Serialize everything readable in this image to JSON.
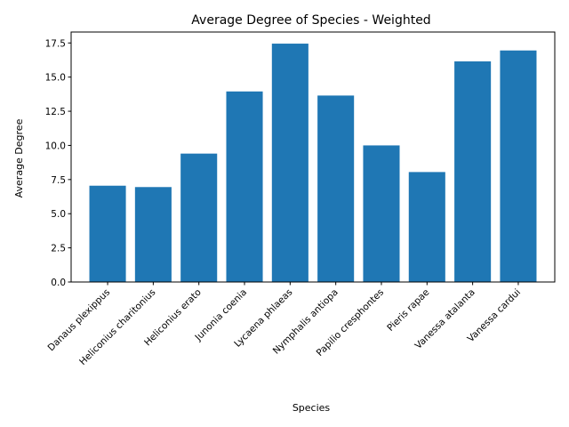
{
  "chart_data": {
    "type": "bar",
    "title": "Average Degree of Species - Weighted",
    "xlabel": "Species",
    "ylabel": "Average Degree",
    "categories": [
      "Danaus plexippus",
      "Heliconius charitonius",
      "Heliconius erato",
      "Junonia coenia",
      "Lycaena phlaeas",
      "Nymphalis antiopa",
      "Papilio cresphontes",
      "Pieris rapae",
      "Vanessa atalanta",
      "Vanessa cardui"
    ],
    "values": [
      7.05,
      6.95,
      9.4,
      13.95,
      17.45,
      13.65,
      10.0,
      8.05,
      16.15,
      16.95
    ],
    "ylim": [
      0,
      18.3
    ],
    "yticks": [
      "0.0",
      "2.5",
      "5.0",
      "7.5",
      "10.0",
      "12.5",
      "15.0",
      "17.5"
    ],
    "bar_color": "#1f77b4",
    "grid": false,
    "legend": "none"
  }
}
